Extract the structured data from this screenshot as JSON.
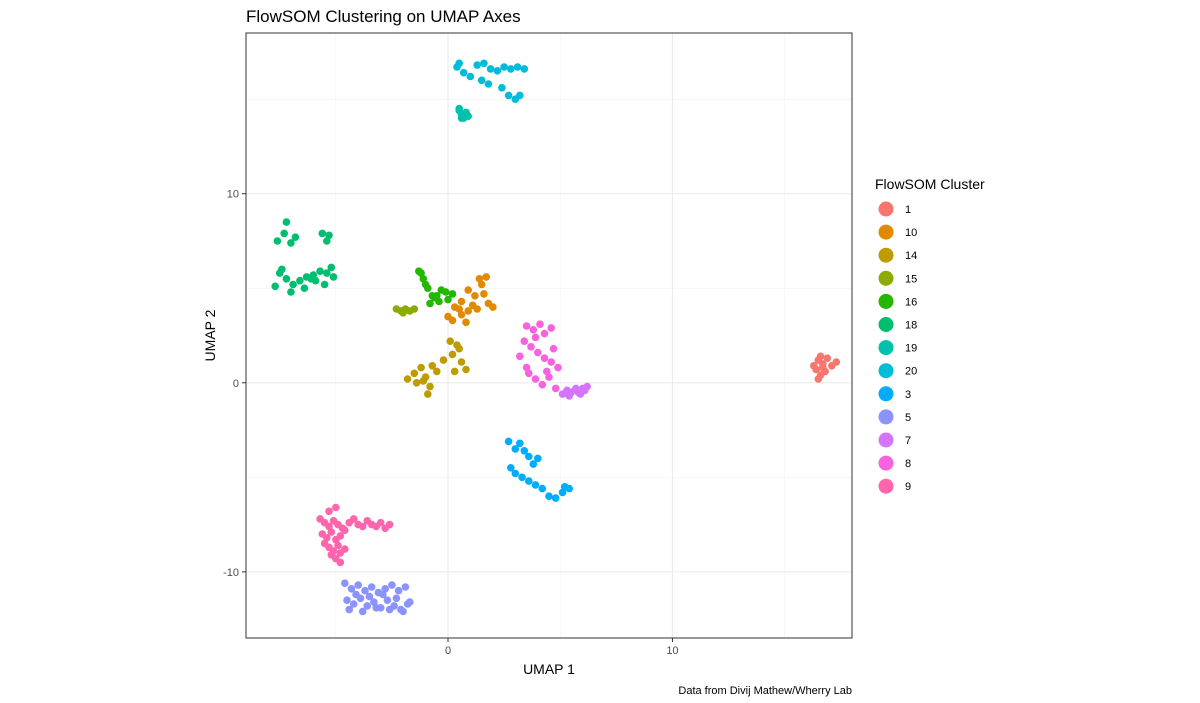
{
  "chart_data": {
    "type": "scatter",
    "title": "FlowSOM Clustering on UMAP Axes",
    "xlabel": "UMAP 1",
    "ylabel": "UMAP 2",
    "caption": "Data from Divij Mathew/Wherry Lab",
    "xlim": [
      -9,
      18
    ],
    "ylim": [
      -13.5,
      18.5
    ],
    "x_ticks": [
      0,
      10
    ],
    "y_ticks": [
      -10,
      0,
      10
    ],
    "grid": true,
    "legend": {
      "title": "FlowSOM Cluster",
      "position": "right"
    },
    "series": [
      {
        "name": "1",
        "color": "#F8766D",
        "x": [
          16.3,
          16.5,
          16.7,
          16.8,
          16.6,
          16.4,
          16.9,
          17.1,
          17.3,
          16.5,
          16.7,
          16.6
        ],
        "y": [
          0.9,
          1.2,
          1.0,
          0.6,
          0.4,
          0.7,
          1.3,
          0.9,
          1.1,
          0.2,
          0.8,
          1.4
        ]
      },
      {
        "name": "10",
        "color": "#E18A00",
        "x": [
          0.0,
          0.3,
          0.6,
          0.9,
          1.2,
          1.5,
          0.8,
          1.1,
          1.7,
          0.5,
          0.2,
          1.4,
          1.8,
          2.0,
          0.9,
          0.6,
          1.6,
          1.3
        ],
        "y": [
          3.5,
          4.0,
          4.3,
          3.8,
          4.6,
          5.2,
          3.2,
          4.1,
          5.6,
          3.9,
          3.3,
          5.5,
          4.2,
          4.0,
          4.9,
          3.6,
          4.7,
          3.9
        ]
      },
      {
        "name": "14",
        "color": "#BE9C00",
        "x": [
          -1.8,
          -1.5,
          -1.2,
          -1.0,
          -0.8,
          -0.5,
          -0.2,
          0.2,
          0.4,
          0.6,
          0.8,
          0.3,
          -0.9,
          -1.1,
          -0.7,
          0.5,
          0.1,
          -1.4
        ],
        "y": [
          0.2,
          0.5,
          0.8,
          0.3,
          -0.2,
          0.6,
          1.2,
          1.5,
          2.0,
          1.1,
          0.7,
          0.6,
          -0.6,
          0.1,
          0.9,
          1.8,
          2.2,
          0.0
        ]
      },
      {
        "name": "15",
        "color": "#8CAB00",
        "x": [
          -2.3,
          -2.1,
          -1.9,
          -1.7,
          -1.5,
          -2.0
        ],
        "y": [
          3.9,
          3.8,
          3.9,
          3.8,
          3.9,
          3.7
        ]
      },
      {
        "name": "16",
        "color": "#24B700",
        "x": [
          -1.3,
          -1.1,
          -0.9,
          -0.7,
          -0.4,
          -0.1,
          0.2,
          -0.8,
          -1.0,
          -0.6,
          -0.3,
          0.0,
          -1.2,
          -0.5
        ],
        "y": [
          5.9,
          5.5,
          5.0,
          4.6,
          4.3,
          4.8,
          4.7,
          4.2,
          5.2,
          4.5,
          4.9,
          4.4,
          5.8,
          4.6
        ]
      },
      {
        "name": "18",
        "color": "#00BE70",
        "x": [
          -7.6,
          -7.3,
          -7.0,
          -6.8,
          -7.2,
          -5.6,
          -5.4,
          -5.3,
          -7.5,
          -7.2,
          -6.9,
          -6.6,
          -6.3,
          -6.0,
          -5.7,
          -5.4,
          -5.1,
          -7.7,
          -7.0,
          -6.4,
          -5.9,
          -7.4,
          -5.2,
          -6.1,
          -5.5
        ],
        "y": [
          7.5,
          7.9,
          7.4,
          7.7,
          8.5,
          7.9,
          7.5,
          7.8,
          5.8,
          5.5,
          5.2,
          5.4,
          5.6,
          5.7,
          5.9,
          5.8,
          5.6,
          5.1,
          4.8,
          5.0,
          5.4,
          6.0,
          6.1,
          5.5,
          5.2
        ]
      },
      {
        "name": "19",
        "color": "#00C1AB",
        "x": [
          0.5,
          0.6,
          0.7,
          0.8,
          0.9,
          0.5,
          0.6
        ],
        "y": [
          14.5,
          14.2,
          14.0,
          14.3,
          14.1,
          14.4,
          14.0
        ]
      },
      {
        "name": "20",
        "color": "#00BBDA",
        "x": [
          0.4,
          0.7,
          1.0,
          1.3,
          1.6,
          1.9,
          2.2,
          2.5,
          2.8,
          3.1,
          3.4,
          1.5,
          1.8,
          2.4,
          2.7,
          3.0,
          3.2,
          0.5
        ],
        "y": [
          16.7,
          16.4,
          16.2,
          16.8,
          16.9,
          16.6,
          16.5,
          16.7,
          16.6,
          16.7,
          16.6,
          16.0,
          15.8,
          15.6,
          15.2,
          15.0,
          15.2,
          16.9
        ]
      },
      {
        "name": "3",
        "color": "#00ACFC",
        "x": [
          2.7,
          3.0,
          3.2,
          3.4,
          3.6,
          2.8,
          3.0,
          3.3,
          3.6,
          3.9,
          4.2,
          4.5,
          4.8,
          5.1,
          5.4,
          3.8,
          4.0,
          5.2
        ],
        "y": [
          -3.1,
          -3.5,
          -3.2,
          -3.6,
          -3.9,
          -4.5,
          -4.8,
          -5.0,
          -5.2,
          -5.4,
          -5.6,
          -6.0,
          -6.1,
          -5.8,
          -5.6,
          -4.3,
          -4.0,
          -5.5
        ]
      },
      {
        "name": "5",
        "color": "#8B93FF",
        "x": [
          -4.6,
          -4.3,
          -4.0,
          -3.7,
          -3.4,
          -3.1,
          -2.8,
          -2.5,
          -2.2,
          -1.9,
          -4.5,
          -4.2,
          -3.9,
          -3.6,
          -3.3,
          -3.0,
          -2.7,
          -2.4,
          -2.1,
          -1.8,
          -4.4,
          -3.8,
          -3.2,
          -2.6,
          -2.0,
          -4.1,
          -3.5,
          -2.9,
          -2.3,
          -1.7
        ],
        "y": [
          -10.6,
          -10.9,
          -10.7,
          -11.0,
          -10.8,
          -11.1,
          -10.9,
          -10.7,
          -11.0,
          -10.8,
          -11.5,
          -11.7,
          -11.4,
          -11.8,
          -11.6,
          -11.9,
          -11.5,
          -11.8,
          -12.0,
          -11.7,
          -12.0,
          -12.1,
          -11.9,
          -12.0,
          -12.1,
          -11.2,
          -11.3,
          -11.2,
          -11.4,
          -11.6
        ]
      },
      {
        "name": "7",
        "color": "#D575FE",
        "x": [
          5.1,
          5.3,
          5.5,
          5.7,
          5.9,
          6.1,
          6.2,
          5.4,
          5.8,
          6.0
        ],
        "y": [
          -0.6,
          -0.4,
          -0.5,
          -0.3,
          -0.6,
          -0.4,
          -0.2,
          -0.7,
          -0.5,
          -0.3
        ]
      },
      {
        "name": "8",
        "color": "#F962DD",
        "x": [
          3.5,
          3.8,
          4.1,
          4.3,
          4.6,
          3.4,
          3.7,
          4.0,
          4.3,
          4.6,
          4.9,
          3.6,
          3.9,
          4.2,
          4.5,
          3.2,
          3.5,
          4.8,
          4.4,
          3.9,
          4.7
        ],
        "y": [
          3.0,
          2.8,
          3.1,
          2.6,
          2.9,
          2.2,
          1.9,
          1.6,
          1.3,
          1.1,
          0.8,
          0.5,
          0.2,
          -0.1,
          0.3,
          1.4,
          0.8,
          -0.3,
          0.6,
          2.4,
          1.8
        ]
      },
      {
        "name": "9",
        "color": "#FF65AC",
        "x": [
          -5.7,
          -5.5,
          -5.3,
          -5.1,
          -4.9,
          -4.7,
          -5.6,
          -5.4,
          -5.2,
          -5.0,
          -4.8,
          -4.6,
          -5.5,
          -5.3,
          -5.1,
          -4.9,
          -5.2,
          -5.0,
          -4.8,
          -4.6,
          -4.4,
          -4.2,
          -4.0,
          -3.8,
          -3.6,
          -3.4,
          -3.2,
          -3.0,
          -2.8,
          -2.6,
          -5.3,
          -5.0,
          -4.8
        ],
        "y": [
          -7.2,
          -7.4,
          -7.6,
          -7.3,
          -7.5,
          -7.7,
          -8.0,
          -8.2,
          -7.9,
          -8.3,
          -8.1,
          -7.8,
          -8.5,
          -8.7,
          -8.9,
          -8.6,
          -9.1,
          -9.3,
          -9.0,
          -8.8,
          -7.4,
          -7.2,
          -7.5,
          -7.6,
          -7.3,
          -7.5,
          -7.6,
          -7.4,
          -7.7,
          -7.5,
          -6.8,
          -6.6,
          -9.5
        ]
      }
    ]
  }
}
